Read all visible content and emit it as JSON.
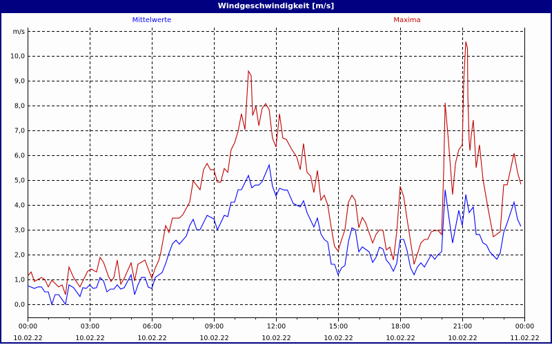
{
  "window": {
    "title": "Windgeschwindigkeit [m/s]"
  },
  "chart_data": {
    "type": "line",
    "title": "Windgeschwindigkeit [m/s]",
    "ylabel": "m/s",
    "xlabel": "",
    "xlim_hours": [
      0,
      24
    ],
    "ylim": [
      -0.5,
      11.0
    ],
    "grid": true,
    "yticks": [
      0,
      1,
      2,
      3,
      4,
      5,
      6,
      7,
      8,
      9,
      10
    ],
    "ytick_labels": [
      "0,0",
      "1,0",
      "2,0",
      "3,0",
      "4,0",
      "5,0",
      "6,0",
      "7,0",
      "8,0",
      "9,0",
      "10,0"
    ],
    "xticks": [
      {
        "hour": 0,
        "time": "00:00",
        "date": "10.02.22"
      },
      {
        "hour": 3,
        "time": "03:00",
        "date": "10.02.22"
      },
      {
        "hour": 6,
        "time": "06:00",
        "date": "10.02.22"
      },
      {
        "hour": 9,
        "time": "09:00",
        "date": "10.02.22"
      },
      {
        "hour": 12,
        "time": "12:00",
        "date": "10.02.22"
      },
      {
        "hour": 15,
        "time": "15:00",
        "date": "10.02.22"
      },
      {
        "hour": 18,
        "time": "18:00",
        "date": "10.02.22"
      },
      {
        "hour": 21,
        "time": "21:00",
        "date": "10.02.22"
      },
      {
        "hour": 24,
        "time": "00:00",
        "date": "11.02.22"
      }
    ],
    "series": [
      {
        "name": "Mittelwerte",
        "color": "#0000ff",
        "legend": "top-left",
        "points": [
          [
            0,
            0.75
          ],
          [
            0.33,
            0.64
          ],
          [
            0.5,
            0.7
          ],
          [
            0.67,
            0.7
          ],
          [
            0.83,
            0.5
          ],
          [
            1.0,
            0.5
          ],
          [
            1.17,
            0
          ],
          [
            1.33,
            0.39
          ],
          [
            1.5,
            0.39
          ],
          [
            1.83,
            0
          ],
          [
            2.0,
            0.78
          ],
          [
            2.22,
            0.67
          ],
          [
            2.53,
            0.31
          ],
          [
            2.67,
            0.67
          ],
          [
            2.83,
            0.64
          ],
          [
            3.0,
            0.78
          ],
          [
            3.17,
            0.64
          ],
          [
            3.33,
            0.67
          ],
          [
            3.5,
            1.08
          ],
          [
            3.67,
            0.94
          ],
          [
            3.83,
            0.5
          ],
          [
            4.0,
            0.61
          ],
          [
            4.17,
            0.61
          ],
          [
            4.33,
            0.78
          ],
          [
            4.5,
            0.61
          ],
          [
            4.67,
            0.67
          ],
          [
            5.0,
            1.19
          ],
          [
            5.17,
            0.39
          ],
          [
            5.33,
            0.78
          ],
          [
            5.5,
            1.08
          ],
          [
            5.67,
            1.08
          ],
          [
            5.83,
            0.69
          ],
          [
            6.0,
            0.64
          ],
          [
            6.17,
            1.08
          ],
          [
            6.5,
            1.28
          ],
          [
            6.67,
            1.64
          ],
          [
            6.83,
            2.06
          ],
          [
            7.0,
            2.44
          ],
          [
            7.17,
            2.58
          ],
          [
            7.33,
            2.42
          ],
          [
            7.67,
            2.75
          ],
          [
            7.83,
            3.17
          ],
          [
            8.0,
            3.42
          ],
          [
            8.17,
            3.0
          ],
          [
            8.33,
            3.0
          ],
          [
            8.67,
            3.58
          ],
          [
            9.0,
            3.44
          ],
          [
            9.17,
            3.0
          ],
          [
            9.5,
            3.58
          ],
          [
            9.67,
            3.53
          ],
          [
            9.83,
            4.11
          ],
          [
            10.0,
            4.11
          ],
          [
            10.17,
            4.61
          ],
          [
            10.33,
            4.61
          ],
          [
            10.67,
            5.19
          ],
          [
            10.83,
            4.69
          ],
          [
            11.0,
            4.8
          ],
          [
            11.17,
            4.8
          ],
          [
            11.33,
            4.94
          ],
          [
            11.67,
            5.61
          ],
          [
            11.83,
            4.75
          ],
          [
            12.0,
            4.36
          ],
          [
            12.17,
            4.67
          ],
          [
            12.4,
            4.6
          ],
          [
            12.55,
            4.6
          ],
          [
            12.83,
            4.06
          ],
          [
            13.17,
            3.92
          ],
          [
            13.33,
            4.17
          ],
          [
            13.5,
            3.69
          ],
          [
            13.83,
            3.11
          ],
          [
            14.0,
            3.47
          ],
          [
            14.17,
            2.83
          ],
          [
            14.33,
            2.61
          ],
          [
            14.5,
            2.5
          ],
          [
            14.67,
            1.61
          ],
          [
            14.83,
            1.61
          ],
          [
            15.0,
            1.19
          ],
          [
            15.17,
            1.47
          ],
          [
            15.33,
            1.56
          ],
          [
            15.5,
            2.53
          ],
          [
            15.67,
            3.08
          ],
          [
            15.83,
            3.0
          ],
          [
            16.0,
            2.11
          ],
          [
            16.17,
            2.31
          ],
          [
            16.5,
            2.11
          ],
          [
            16.67,
            1.69
          ],
          [
            16.83,
            1.89
          ],
          [
            17.0,
            2.3
          ],
          [
            17.17,
            2.22
          ],
          [
            17.33,
            1.78
          ],
          [
            17.5,
            1.61
          ],
          [
            17.67,
            1.33
          ],
          [
            17.83,
            1.64
          ],
          [
            18.0,
            2.61
          ],
          [
            18.17,
            2.61
          ],
          [
            18.33,
            2.17
          ],
          [
            18.5,
            1.47
          ],
          [
            18.67,
            1.19
          ],
          [
            18.83,
            1.5
          ],
          [
            19.0,
            1.67
          ],
          [
            19.17,
            1.5
          ],
          [
            19.5,
            2.0
          ],
          [
            19.67,
            1.81
          ],
          [
            19.83,
            2.0
          ],
          [
            20.0,
            2.11
          ],
          [
            20.17,
            4.61
          ],
          [
            20.33,
            3.64
          ],
          [
            20.53,
            2.47
          ],
          [
            20.83,
            3.78
          ],
          [
            21.0,
            3.17
          ],
          [
            21.17,
            4.42
          ],
          [
            21.33,
            3.69
          ],
          [
            21.53,
            3.92
          ],
          [
            21.67,
            2.81
          ],
          [
            21.83,
            2.81
          ],
          [
            22.0,
            2.47
          ],
          [
            22.17,
            2.39
          ],
          [
            22.33,
            2.11
          ],
          [
            22.67,
            1.81
          ],
          [
            22.83,
            2.06
          ],
          [
            23.0,
            2.89
          ],
          [
            23.17,
            3.28
          ],
          [
            23.5,
            4.11
          ],
          [
            23.67,
            3.42
          ],
          [
            23.83,
            3.14
          ]
        ]
      },
      {
        "name": "Maxima",
        "color": "#c00000",
        "legend": "top-right",
        "points": [
          [
            0,
            1.14
          ],
          [
            0.17,
            1.3
          ],
          [
            0.33,
            0.92
          ],
          [
            0.67,
            1.08
          ],
          [
            0.83,
            1.0
          ],
          [
            1.0,
            0.7
          ],
          [
            1.17,
            0.97
          ],
          [
            1.5,
            0.7
          ],
          [
            1.67,
            0.78
          ],
          [
            1.83,
            0.39
          ],
          [
            2.0,
            1.5
          ],
          [
            2.22,
            1.08
          ],
          [
            2.53,
            0.7
          ],
          [
            2.9,
            1.33
          ],
          [
            3.07,
            1.42
          ],
          [
            3.33,
            1.3
          ],
          [
            3.5,
            1.89
          ],
          [
            3.67,
            1.69
          ],
          [
            3.9,
            1.14
          ],
          [
            4.03,
            0.92
          ],
          [
            4.17,
            1.08
          ],
          [
            4.33,
            1.78
          ],
          [
            4.5,
            0.81
          ],
          [
            4.67,
            1.05
          ],
          [
            5.0,
            1.67
          ],
          [
            5.17,
            0.94
          ],
          [
            5.33,
            1.61
          ],
          [
            5.67,
            1.78
          ],
          [
            5.83,
            1.42
          ],
          [
            6.0,
            1.05
          ],
          [
            6.17,
            1.47
          ],
          [
            6.33,
            1.75
          ],
          [
            6.43,
            2.06
          ],
          [
            6.67,
            3.17
          ],
          [
            6.83,
            2.89
          ],
          [
            7.0,
            3.47
          ],
          [
            7.33,
            3.47
          ],
          [
            7.5,
            3.61
          ],
          [
            7.83,
            4.11
          ],
          [
            8.0,
            4.97
          ],
          [
            8.33,
            4.61
          ],
          [
            8.5,
            5.42
          ],
          [
            8.67,
            5.67
          ],
          [
            8.83,
            5.42
          ],
          [
            9.0,
            5.42
          ],
          [
            9.17,
            4.92
          ],
          [
            9.33,
            4.92
          ],
          [
            9.5,
            5.47
          ],
          [
            9.67,
            5.31
          ],
          [
            9.83,
            6.22
          ],
          [
            10.0,
            6.5
          ],
          [
            10.17,
            6.97
          ],
          [
            10.33,
            7.67
          ],
          [
            10.5,
            7.03
          ],
          [
            10.67,
            9.39
          ],
          [
            10.8,
            9.2
          ],
          [
            10.87,
            7.6
          ],
          [
            11.03,
            7.97
          ],
          [
            11.17,
            7.19
          ],
          [
            11.33,
            7.89
          ],
          [
            11.5,
            8.08
          ],
          [
            11.67,
            7.83
          ],
          [
            11.83,
            6.69
          ],
          [
            12.0,
            6.33
          ],
          [
            12.17,
            7.67
          ],
          [
            12.33,
            6.69
          ],
          [
            12.5,
            6.64
          ],
          [
            12.77,
            6.22
          ],
          [
            13.0,
            5.94
          ],
          [
            13.17,
            5.42
          ],
          [
            13.33,
            6.47
          ],
          [
            13.5,
            5.31
          ],
          [
            13.67,
            5.17
          ],
          [
            13.83,
            4.5
          ],
          [
            14.0,
            5.39
          ],
          [
            14.17,
            4.19
          ],
          [
            14.33,
            4.39
          ],
          [
            14.5,
            4.0
          ],
          [
            14.67,
            3.08
          ],
          [
            14.83,
            2.33
          ],
          [
            15.0,
            2.14
          ],
          [
            15.17,
            2.61
          ],
          [
            15.33,
            3.0
          ],
          [
            15.5,
            4.11
          ],
          [
            15.67,
            4.39
          ],
          [
            15.83,
            4.19
          ],
          [
            16.0,
            3.08
          ],
          [
            16.17,
            3.5
          ],
          [
            16.33,
            3.28
          ],
          [
            16.67,
            2.47
          ],
          [
            16.83,
            2.81
          ],
          [
            17.0,
            3.0
          ],
          [
            17.17,
            2.97
          ],
          [
            17.33,
            2.19
          ],
          [
            17.5,
            2.3
          ],
          [
            17.67,
            1.78
          ],
          [
            17.83,
            2.89
          ],
          [
            18.0,
            4.75
          ],
          [
            18.17,
            4.33
          ],
          [
            18.33,
            3.44
          ],
          [
            18.5,
            2.53
          ],
          [
            18.67,
            1.61
          ],
          [
            18.83,
            2.03
          ],
          [
            19.0,
            2.47
          ],
          [
            19.17,
            2.61
          ],
          [
            19.33,
            2.61
          ],
          [
            19.5,
            2.92
          ],
          [
            19.67,
            2.97
          ],
          [
            19.83,
            2.97
          ],
          [
            20.0,
            2.81
          ],
          [
            20.1,
            5.3
          ],
          [
            20.17,
            8.11
          ],
          [
            20.2,
            7.8
          ],
          [
            20.33,
            6.6
          ],
          [
            20.43,
            5.5
          ],
          [
            20.53,
            4.42
          ],
          [
            20.67,
            5.67
          ],
          [
            20.83,
            6.22
          ],
          [
            21.0,
            6.42
          ],
          [
            21.07,
            9.0
          ],
          [
            21.17,
            10.58
          ],
          [
            21.25,
            10.3
          ],
          [
            21.27,
            8.36
          ],
          [
            21.33,
            6.6
          ],
          [
            21.37,
            6.19
          ],
          [
            21.43,
            6.78
          ],
          [
            21.53,
            7.42
          ],
          [
            21.6,
            6.5
          ],
          [
            21.67,
            5.5
          ],
          [
            21.83,
            6.42
          ],
          [
            22.0,
            5.03
          ],
          [
            22.23,
            3.92
          ],
          [
            22.5,
            2.72
          ],
          [
            22.83,
            2.92
          ],
          [
            23.0,
            4.81
          ],
          [
            23.17,
            4.81
          ],
          [
            23.5,
            6.08
          ],
          [
            23.67,
            5.31
          ],
          [
            23.83,
            4.83
          ]
        ]
      }
    ]
  }
}
